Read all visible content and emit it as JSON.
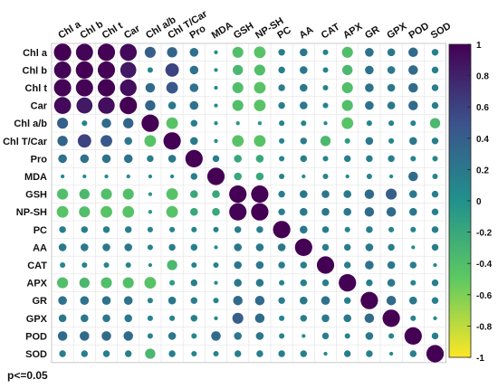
{
  "chart_data": {
    "type": "heatmap",
    "style": "correlation-circles",
    "variables": [
      "Chl a",
      "Chl b",
      "Chl t",
      "Car",
      "Chl a/b",
      "Chl T/Car",
      "Pro",
      "MDA",
      "GSH",
      "NP-SH",
      "PC",
      "AA",
      "CAT",
      "APX",
      "GR",
      "GPX",
      "POD",
      "SOD"
    ],
    "values": [
      [
        1.0,
        0.97,
        0.99,
        0.95,
        0.4,
        0.35,
        0.25,
        0.05,
        -0.4,
        -0.45,
        0.15,
        0.2,
        0.1,
        -0.4,
        0.25,
        0.2,
        0.3,
        0.15
      ],
      [
        0.97,
        1.0,
        0.99,
        0.85,
        0.1,
        0.6,
        0.25,
        0.05,
        -0.35,
        -0.4,
        0.15,
        0.2,
        0.1,
        -0.35,
        0.25,
        0.2,
        0.3,
        0.15
      ],
      [
        0.99,
        0.99,
        1.0,
        0.92,
        0.3,
        0.45,
        0.25,
        0.05,
        -0.4,
        -0.45,
        0.15,
        0.2,
        0.1,
        -0.4,
        0.25,
        0.2,
        0.3,
        0.15
      ],
      [
        0.95,
        0.85,
        0.92,
        1.0,
        0.35,
        0.2,
        0.25,
        0.05,
        -0.4,
        -0.45,
        0.15,
        0.2,
        0.1,
        -0.4,
        0.25,
        0.2,
        0.3,
        0.15
      ],
      [
        0.4,
        0.1,
        0.3,
        0.35,
        1.0,
        -0.45,
        0.15,
        0.05,
        -0.05,
        -0.05,
        0.1,
        0.1,
        0.05,
        -0.45,
        0.1,
        0.1,
        0.1,
        -0.35
      ],
      [
        0.35,
        0.6,
        0.45,
        0.2,
        -0.45,
        1.0,
        0.2,
        0.05,
        -0.45,
        -0.45,
        0.1,
        0.15,
        -0.35,
        -0.1,
        0.2,
        0.1,
        0.2,
        0.15
      ],
      [
        0.25,
        0.25,
        0.25,
        0.25,
        0.15,
        0.2,
        1.0,
        0.15,
        -0.2,
        -0.2,
        0.1,
        0.15,
        0.1,
        0.15,
        0.15,
        0.15,
        0.1,
        0.1
      ],
      [
        0.05,
        0.05,
        0.05,
        0.05,
        0.05,
        0.05,
        0.15,
        1.0,
        -0.2,
        -0.2,
        0.1,
        0.05,
        0.1,
        0.05,
        0.1,
        0.05,
        0.3,
        0.1
      ],
      [
        -0.4,
        -0.35,
        -0.4,
        -0.4,
        -0.05,
        -0.45,
        -0.2,
        -0.2,
        1.0,
        0.99,
        0.15,
        0.2,
        0.2,
        0.2,
        0.3,
        0.4,
        0.2,
        0.15
      ],
      [
        -0.45,
        -0.4,
        -0.45,
        -0.45,
        -0.05,
        -0.45,
        -0.2,
        -0.2,
        0.99,
        1.0,
        0.15,
        0.2,
        0.2,
        0.2,
        0.3,
        0.3,
        0.2,
        0.15
      ],
      [
        0.15,
        0.15,
        0.15,
        0.15,
        0.1,
        0.1,
        0.1,
        0.1,
        0.15,
        0.15,
        1.0,
        0.2,
        0.15,
        0.1,
        0.15,
        0.1,
        0.1,
        0.15
      ],
      [
        0.2,
        0.2,
        0.2,
        0.2,
        0.1,
        0.15,
        0.15,
        0.05,
        0.2,
        0.2,
        0.2,
        1.0,
        0.15,
        0.15,
        0.2,
        0.15,
        0.05,
        0.15
      ],
      [
        0.1,
        0.1,
        0.1,
        0.1,
        0.05,
        -0.35,
        0.1,
        0.1,
        0.2,
        0.2,
        0.15,
        0.15,
        1.0,
        0.15,
        0.25,
        0.2,
        0.15,
        0.05
      ],
      [
        -0.4,
        -0.35,
        -0.4,
        -0.4,
        -0.45,
        -0.1,
        0.15,
        0.05,
        0.2,
        0.2,
        0.1,
        0.15,
        0.15,
        1.0,
        0.15,
        0.2,
        0.1,
        0.15
      ],
      [
        0.25,
        0.25,
        0.25,
        0.25,
        0.1,
        0.2,
        0.15,
        0.1,
        0.3,
        0.3,
        0.15,
        0.2,
        0.25,
        0.15,
        1.0,
        0.3,
        0.2,
        0.15
      ],
      [
        0.2,
        0.2,
        0.2,
        0.2,
        0.1,
        0.1,
        0.15,
        0.05,
        0.4,
        0.3,
        0.1,
        0.15,
        0.2,
        0.2,
        0.3,
        1.0,
        0.1,
        0.05
      ],
      [
        0.3,
        0.3,
        0.3,
        0.3,
        0.1,
        0.2,
        0.1,
        0.3,
        0.2,
        0.2,
        0.1,
        0.05,
        0.15,
        0.1,
        0.2,
        0.1,
        1.0,
        0.15
      ],
      [
        0.15,
        0.15,
        0.15,
        0.15,
        -0.35,
        0.15,
        0.1,
        0.1,
        0.15,
        0.15,
        0.15,
        0.15,
        0.05,
        0.15,
        0.15,
        0.05,
        0.15,
        1.0
      ]
    ],
    "range": [
      -1,
      1
    ],
    "colorbar": {
      "ticks": [
        1,
        0.8,
        0.6,
        0.4,
        0.2,
        0,
        -0.2,
        -0.4,
        -0.6,
        -0.8,
        -1
      ],
      "tick_labels": [
        "1",
        "0.8",
        "0.6",
        "0.4",
        "0.2",
        "0",
        "-0.2",
        "-0.4",
        "-0.6",
        "-0.8",
        "-1"
      ],
      "position": "right",
      "colors": [
        "#440154",
        "#3b528b",
        "#21918c",
        "#5ec962",
        "#fde725"
      ]
    },
    "grid": true,
    "footnote": "p<=0.05"
  }
}
